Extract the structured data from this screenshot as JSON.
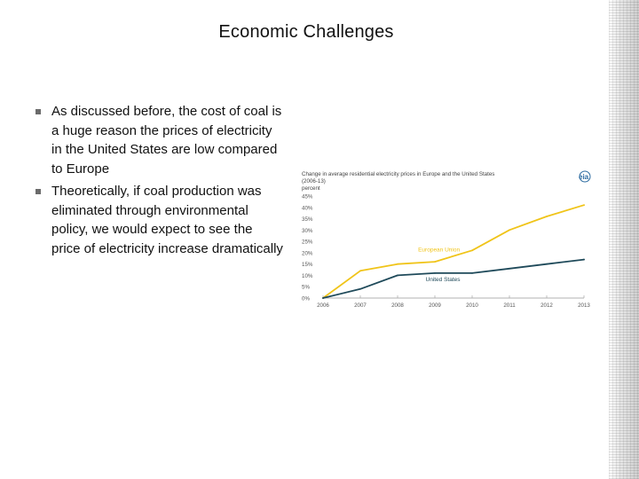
{
  "slide": {
    "title": "Economic Challenges",
    "bullets": [
      "As discussed before, the cost of coal is a huge reason the prices of electricity in the United States are low compared to Europe",
      "Theoretically, if coal production was eliminated through environmental policy, we would expect to see the price of electricity increase dramatically"
    ]
  },
  "chart_data": {
    "type": "line",
    "title": "Change in average residential electricity prices in Europe and the United States",
    "subtitle": "(2006-13)",
    "ylabel": "percent",
    "logo": "eia",
    "x": [
      "2006",
      "2007",
      "2008",
      "2009",
      "2010",
      "2011",
      "2012",
      "2013"
    ],
    "y_ticks": [
      "0%",
      "5%",
      "10%",
      "15%",
      "20%",
      "25%",
      "30%",
      "35%",
      "40%",
      "45%"
    ],
    "ylim": [
      0,
      45
    ],
    "grid": false,
    "series": [
      {
        "name": "European Union",
        "color": "#f0c419",
        "values": [
          0,
          12,
          15,
          16,
          21,
          30,
          36,
          41
        ]
      },
      {
        "name": "United States",
        "color": "#1f4a5a",
        "values": [
          0,
          4,
          10,
          11,
          11,
          13,
          15,
          17
        ]
      }
    ]
  }
}
